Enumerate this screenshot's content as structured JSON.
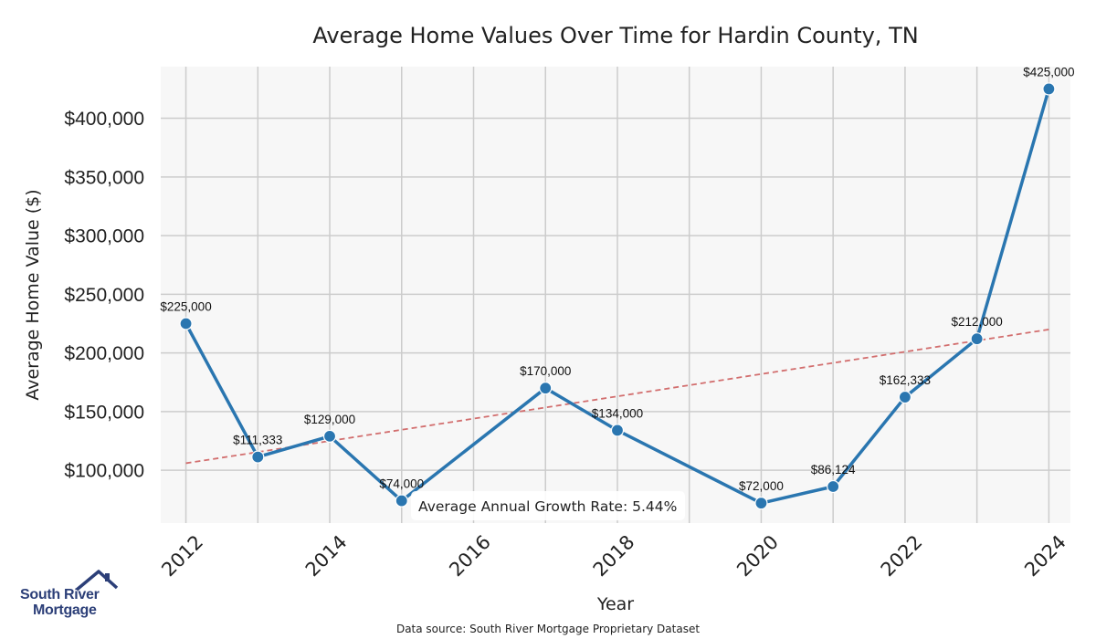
{
  "chart_data": {
    "type": "line",
    "title": "Average Home Values Over Time for Hardin County, TN",
    "xlabel": "Year",
    "ylabel": "Average Home Value ($)",
    "x": [
      2012,
      2013,
      2014,
      2015,
      2017,
      2018,
      2020,
      2021,
      2022,
      2023,
      2024
    ],
    "values": [
      225000,
      111333,
      129000,
      74000,
      170000,
      134000,
      72000,
      86124,
      162333,
      212000,
      425000
    ],
    "data_labels": [
      "$225,000",
      "$111,333",
      "$129,000",
      "$74,000",
      "$170,000",
      "$134,000",
      "$72,000",
      "$86,124",
      "$162,333",
      "$212,000",
      "$425,000"
    ],
    "xticks": [
      2012,
      2014,
      2016,
      2018,
      2020,
      2022,
      2024
    ],
    "xtick_labels": [
      "2012",
      "2014",
      "2016",
      "2018",
      "2020",
      "2022",
      "2024"
    ],
    "yticks": [
      100000,
      150000,
      200000,
      250000,
      300000,
      350000,
      400000
    ],
    "ytick_labels": [
      "$100,000",
      "$150,000",
      "$200,000",
      "$250,000",
      "$300,000",
      "$350,000",
      "$400,000"
    ],
    "xlim": [
      2011.65,
      2024.3
    ],
    "ylim": [
      55000,
      444000
    ],
    "trendline": {
      "x": [
        2012,
        2024
      ],
      "y": [
        106000,
        220000
      ],
      "style": "dashed"
    },
    "grid": true,
    "annotation": "Average Annual Growth Rate: 5.44%",
    "colors": {
      "line": "#2a76b0",
      "trend": "#d26e6e",
      "plot_bg": "#f7f7f7",
      "grid": "#cccccc"
    }
  },
  "footer": {
    "source": "Data source: South River Mortgage Proprietary Dataset",
    "logo_line1": "South River",
    "logo_line2": "Mortgage",
    "logo_color": "#2c3f78"
  }
}
